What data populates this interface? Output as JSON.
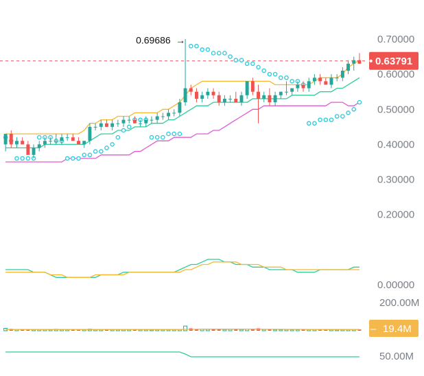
{
  "chart_data": {
    "type": "candlestick",
    "price_axis": {
      "ticks": [
        0.7,
        0.6,
        0.5,
        0.4,
        0.3,
        0.2,
        0.0
      ],
      "tick_labels": [
        "0.70000",
        "0.60000",
        "0.50000",
        "0.40000",
        "0.30000",
        "0.20000",
        "0.00000"
      ],
      "ylim": [
        0.0,
        0.72
      ]
    },
    "last_price": 0.63791,
    "last_price_label": "0.63791",
    "high_marker_value": 0.69686,
    "high_marker_label": "0.69686",
    "colors": {
      "up": "#26a69a",
      "down": "#ef5350",
      "last_price_line": "#ef5350",
      "bb_upper": "#f5b82e",
      "bb_middle": "#2ecc9a",
      "bb_lower": "#e05ad1",
      "sar": "#33ccdd",
      "macd": "#2ecc9a",
      "signal": "#f5b82e",
      "volume_ma": "#f5b82e",
      "volume_badge": "#f5b84d",
      "bottom_line": "#2ecc9a"
    },
    "candles": [
      [
        0.4,
        0.43,
        0.38,
        0.43
      ],
      [
        0.43,
        0.44,
        0.39,
        0.4
      ],
      [
        0.4,
        0.42,
        0.39,
        0.41
      ],
      [
        0.41,
        0.42,
        0.4,
        0.4
      ],
      [
        0.4,
        0.41,
        0.37,
        0.37
      ],
      [
        0.37,
        0.4,
        0.36,
        0.39
      ],
      [
        0.39,
        0.41,
        0.38,
        0.4
      ],
      [
        0.4,
        0.42,
        0.39,
        0.41
      ],
      [
        0.41,
        0.42,
        0.4,
        0.41
      ],
      [
        0.41,
        0.43,
        0.4,
        0.41
      ],
      [
        0.41,
        0.43,
        0.4,
        0.42
      ],
      [
        0.42,
        0.43,
        0.41,
        0.42
      ],
      [
        0.42,
        0.43,
        0.41,
        0.41
      ],
      [
        0.41,
        0.42,
        0.4,
        0.4
      ],
      [
        0.4,
        0.41,
        0.39,
        0.41
      ],
      [
        0.41,
        0.46,
        0.4,
        0.45
      ],
      [
        0.45,
        0.46,
        0.44,
        0.45
      ],
      [
        0.45,
        0.47,
        0.44,
        0.46
      ],
      [
        0.46,
        0.47,
        0.45,
        0.45
      ],
      [
        0.45,
        0.47,
        0.44,
        0.46
      ],
      [
        0.46,
        0.47,
        0.45,
        0.46
      ],
      [
        0.46,
        0.48,
        0.45,
        0.47
      ],
      [
        0.47,
        0.48,
        0.46,
        0.47
      ],
      [
        0.47,
        0.48,
        0.46,
        0.46
      ],
      [
        0.46,
        0.47,
        0.45,
        0.46
      ],
      [
        0.46,
        0.48,
        0.45,
        0.47
      ],
      [
        0.47,
        0.48,
        0.46,
        0.47
      ],
      [
        0.47,
        0.49,
        0.46,
        0.48
      ],
      [
        0.48,
        0.49,
        0.47,
        0.48
      ],
      [
        0.48,
        0.5,
        0.47,
        0.49
      ],
      [
        0.49,
        0.5,
        0.48,
        0.49
      ],
      [
        0.49,
        0.53,
        0.48,
        0.52
      ],
      [
        0.52,
        0.7,
        0.51,
        0.56
      ],
      [
        0.56,
        0.57,
        0.54,
        0.55
      ],
      [
        0.55,
        0.56,
        0.52,
        0.53
      ],
      [
        0.53,
        0.55,
        0.52,
        0.54
      ],
      [
        0.54,
        0.56,
        0.53,
        0.55
      ],
      [
        0.55,
        0.56,
        0.53,
        0.54
      ],
      [
        0.54,
        0.55,
        0.51,
        0.52
      ],
      [
        0.52,
        0.54,
        0.51,
        0.53
      ],
      [
        0.53,
        0.54,
        0.52,
        0.53
      ],
      [
        0.53,
        0.55,
        0.52,
        0.52
      ],
      [
        0.52,
        0.55,
        0.51,
        0.54
      ],
      [
        0.54,
        0.58,
        0.53,
        0.58
      ],
      [
        0.58,
        0.59,
        0.54,
        0.55
      ],
      [
        0.55,
        0.57,
        0.46,
        0.53
      ],
      [
        0.53,
        0.55,
        0.52,
        0.54
      ],
      [
        0.54,
        0.56,
        0.51,
        0.52
      ],
      [
        0.52,
        0.55,
        0.51,
        0.54
      ],
      [
        0.54,
        0.55,
        0.53,
        0.55
      ],
      [
        0.55,
        0.58,
        0.54,
        0.55
      ],
      [
        0.55,
        0.56,
        0.54,
        0.56
      ],
      [
        0.56,
        0.58,
        0.55,
        0.57
      ],
      [
        0.57,
        0.58,
        0.55,
        0.56
      ],
      [
        0.56,
        0.59,
        0.55,
        0.58
      ],
      [
        0.58,
        0.6,
        0.57,
        0.59
      ],
      [
        0.59,
        0.6,
        0.57,
        0.58
      ],
      [
        0.58,
        0.59,
        0.57,
        0.57
      ],
      [
        0.57,
        0.6,
        0.56,
        0.59
      ],
      [
        0.59,
        0.6,
        0.58,
        0.59
      ],
      [
        0.59,
        0.62,
        0.58,
        0.61
      ],
      [
        0.61,
        0.64,
        0.6,
        0.63
      ],
      [
        0.63,
        0.65,
        0.61,
        0.64
      ],
      [
        0.64,
        0.66,
        0.63,
        0.63
      ]
    ],
    "bb_upper": [
      0.43,
      0.43,
      0.43,
      0.43,
      0.43,
      0.43,
      0.43,
      0.43,
      0.43,
      0.43,
      0.43,
      0.43,
      0.43,
      0.43,
      0.44,
      0.46,
      0.46,
      0.47,
      0.47,
      0.47,
      0.48,
      0.48,
      0.48,
      0.49,
      0.49,
      0.49,
      0.49,
      0.49,
      0.5,
      0.5,
      0.51,
      0.52,
      0.54,
      0.56,
      0.57,
      0.58,
      0.58,
      0.58,
      0.58,
      0.58,
      0.58,
      0.58,
      0.58,
      0.58,
      0.58,
      0.58,
      0.58,
      0.58,
      0.57,
      0.57,
      0.57,
      0.57,
      0.57,
      0.57,
      0.57,
      0.58,
      0.59,
      0.59,
      0.59,
      0.59,
      0.6,
      0.62,
      0.63,
      0.64
    ],
    "bb_middle": [
      0.39,
      0.39,
      0.39,
      0.39,
      0.39,
      0.39,
      0.39,
      0.4,
      0.4,
      0.4,
      0.4,
      0.4,
      0.4,
      0.4,
      0.4,
      0.41,
      0.42,
      0.43,
      0.43,
      0.43,
      0.44,
      0.44,
      0.44,
      0.45,
      0.45,
      0.45,
      0.46,
      0.46,
      0.46,
      0.47,
      0.47,
      0.48,
      0.49,
      0.5,
      0.51,
      0.51,
      0.51,
      0.52,
      0.52,
      0.52,
      0.52,
      0.52,
      0.52,
      0.52,
      0.53,
      0.53,
      0.53,
      0.53,
      0.53,
      0.53,
      0.53,
      0.54,
      0.54,
      0.54,
      0.54,
      0.54,
      0.55,
      0.55,
      0.55,
      0.56,
      0.56,
      0.57,
      0.58,
      0.59
    ],
    "bb_lower": [
      0.35,
      0.35,
      0.35,
      0.35,
      0.35,
      0.35,
      0.35,
      0.35,
      0.35,
      0.35,
      0.35,
      0.36,
      0.36,
      0.36,
      0.36,
      0.36,
      0.36,
      0.37,
      0.37,
      0.37,
      0.37,
      0.37,
      0.37,
      0.38,
      0.38,
      0.39,
      0.4,
      0.41,
      0.41,
      0.41,
      0.42,
      0.42,
      0.42,
      0.42,
      0.43,
      0.43,
      0.43,
      0.44,
      0.44,
      0.45,
      0.46,
      0.47,
      0.48,
      0.49,
      0.5,
      0.5,
      0.51,
      0.51,
      0.51,
      0.51,
      0.51,
      0.51,
      0.51,
      0.51,
      0.51,
      0.51,
      0.51,
      0.51,
      0.52,
      0.52,
      0.52,
      0.51,
      0.51,
      0.52
    ],
    "sar": [
      0.42,
      0.41,
      0.36,
      0.36,
      0.36,
      0.36,
      0.42,
      0.42,
      0.42,
      0.41,
      0.41,
      0.36,
      0.36,
      0.36,
      0.37,
      0.37,
      0.38,
      0.38,
      0.39,
      0.4,
      0.42,
      0.44,
      0.45,
      0.47,
      0.47,
      0.47,
      0.42,
      0.42,
      0.42,
      0.43,
      0.43,
      0.43,
      null,
      0.68,
      0.68,
      0.67,
      0.67,
      0.66,
      0.66,
      0.66,
      0.65,
      0.64,
      0.64,
      0.63,
      0.63,
      0.62,
      0.61,
      0.6,
      0.6,
      0.59,
      0.59,
      0.58,
      0.58,
      0.57,
      0.46,
      0.46,
      0.47,
      0.47,
      0.47,
      0.48,
      0.48,
      0.49,
      0.5,
      0.52
    ],
    "macd": [
      0.38,
      0.38,
      0.38,
      0.38,
      0.38,
      0.37,
      0.37,
      0.37,
      0.36,
      0.35,
      0.35,
      0.35,
      0.35,
      0.35,
      0.35,
      0.35,
      0.35,
      0.36,
      0.36,
      0.36,
      0.36,
      0.37,
      0.37,
      0.37,
      0.37,
      0.37,
      0.37,
      0.37,
      0.37,
      0.37,
      0.37,
      0.38,
      0.39,
      0.4,
      0.4,
      0.41,
      0.42,
      0.42,
      0.42,
      0.41,
      0.41,
      0.4,
      0.4,
      0.4,
      0.39,
      0.39,
      0.39,
      0.38,
      0.38,
      0.38,
      0.38,
      0.38,
      0.37,
      0.37,
      0.37,
      0.37,
      0.38,
      0.38,
      0.38,
      0.38,
      0.38,
      0.38,
      0.39,
      0.39
    ],
    "signal": [
      0.37,
      0.37,
      0.37,
      0.37,
      0.37,
      0.37,
      0.37,
      0.37,
      0.36,
      0.36,
      0.36,
      0.35,
      0.35,
      0.35,
      0.35,
      0.35,
      0.36,
      0.36,
      0.36,
      0.36,
      0.36,
      0.36,
      0.37,
      0.37,
      0.37,
      0.37,
      0.37,
      0.37,
      0.37,
      0.37,
      0.37,
      0.37,
      0.38,
      0.38,
      0.39,
      0.4,
      0.4,
      0.41,
      0.41,
      0.41,
      0.41,
      0.41,
      0.4,
      0.4,
      0.4,
      0.4,
      0.39,
      0.39,
      0.39,
      0.39,
      0.38,
      0.38,
      0.38,
      0.38,
      0.38,
      0.38,
      0.38,
      0.38,
      0.38,
      0.38,
      0.38,
      0.38,
      0.38,
      0.38
    ],
    "volume_axis": {
      "ticks": [
        200000000,
        50000000
      ],
      "tick_labels": [
        "200.00M",
        "50.00M"
      ],
      "ylim": [
        0,
        220000000
      ]
    },
    "last_volume": 19400000,
    "last_volume_label": "19.4M",
    "volumes": [
      18,
      14,
      10,
      9,
      12,
      8,
      10,
      9,
      8,
      11,
      8,
      8,
      9,
      7,
      8,
      12,
      9,
      9,
      7,
      8,
      8,
      9,
      8,
      7,
      8,
      8,
      7,
      8,
      8,
      8,
      9,
      10,
      35,
      18,
      12,
      11,
      10,
      11,
      10,
      9,
      10,
      9,
      9,
      12,
      10,
      18,
      9,
      9,
      8,
      8,
      9,
      8,
      8,
      8,
      8,
      9,
      8,
      7,
      8,
      7,
      8,
      9,
      10,
      9
    ],
    "volume_ma": [
      9,
      9,
      9,
      9,
      9,
      9,
      9,
      9,
      9,
      9,
      9,
      9,
      9,
      9,
      9,
      9,
      9,
      9,
      9,
      9,
      9,
      9,
      9,
      9,
      9,
      9,
      9,
      9,
      9,
      9,
      9,
      9,
      10,
      11,
      11,
      12,
      12,
      12,
      12,
      12,
      12,
      12,
      12,
      12,
      12,
      12,
      11,
      11,
      11,
      11,
      10,
      10,
      10,
      10,
      9,
      9,
      9,
      9,
      9,
      9,
      9,
      9,
      9,
      9
    ],
    "bottom_line": [
      13,
      13,
      13,
      13,
      13,
      13,
      13,
      13,
      13,
      13,
      13,
      13,
      13,
      13,
      13,
      13,
      13,
      13,
      13,
      13,
      13,
      13,
      13,
      13,
      13,
      13,
      13,
      13,
      13,
      13,
      13,
      13,
      10,
      6,
      6,
      6,
      6,
      6,
      6,
      6,
      6,
      6,
      6,
      6,
      6,
      6,
      6,
      6,
      6,
      6,
      6,
      6,
      6,
      6,
      6,
      6,
      6,
      6,
      6,
      6,
      6,
      6,
      6,
      6
    ]
  }
}
